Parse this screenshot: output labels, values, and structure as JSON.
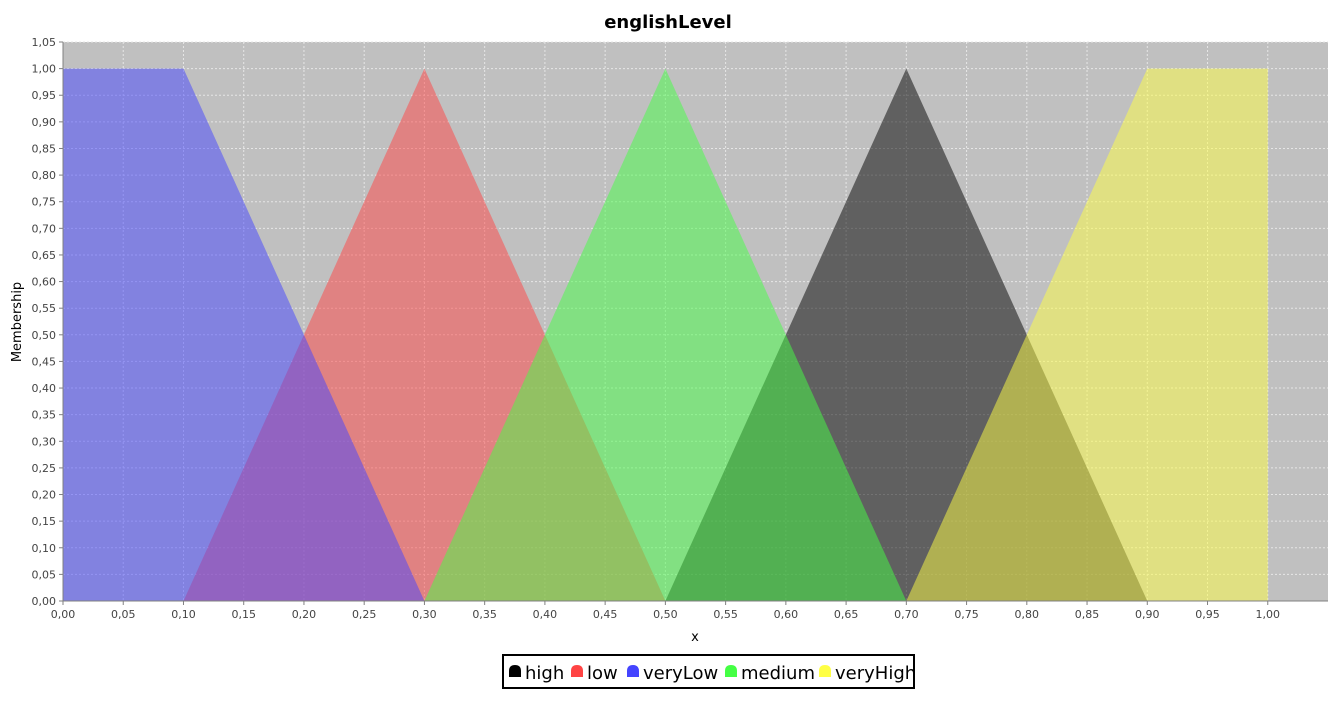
{
  "chart_data": {
    "type": "area",
    "title": "englishLevel",
    "xlabel": "x",
    "ylabel": "Membership",
    "xlim": [
      0,
      1.05
    ],
    "ylim": [
      0,
      1.05
    ],
    "grid": true,
    "legend_position": "bottom",
    "x_ticks": [
      "0,00",
      "0,05",
      "0,10",
      "0,15",
      "0,20",
      "0,25",
      "0,30",
      "0,35",
      "0,40",
      "0,45",
      "0,50",
      "0,55",
      "0,60",
      "0,65",
      "0,70",
      "0,75",
      "0,80",
      "0,85",
      "0,90",
      "0,95",
      "1,00"
    ],
    "y_ticks": [
      "0,00",
      "0,05",
      "0,10",
      "0,15",
      "0,20",
      "0,25",
      "0,30",
      "0,35",
      "0,40",
      "0,45",
      "0,50",
      "0,55",
      "0,60",
      "0,65",
      "0,70",
      "0,75",
      "0,80",
      "0,85",
      "0,90",
      "0,95",
      "1,00",
      "1,05"
    ],
    "series": [
      {
        "name": "high",
        "color": "#000000",
        "points": [
          [
            0.5,
            0
          ],
          [
            0.7,
            1
          ],
          [
            0.9,
            0
          ]
        ]
      },
      {
        "name": "low",
        "color": "#ff4444",
        "points": [
          [
            0.1,
            0
          ],
          [
            0.3,
            1
          ],
          [
            0.5,
            0
          ]
        ]
      },
      {
        "name": "veryLow",
        "color": "#4444ff",
        "points": [
          [
            0,
            0
          ],
          [
            0,
            1
          ],
          [
            0.1,
            1
          ],
          [
            0.3,
            0
          ]
        ]
      },
      {
        "name": "medium",
        "color": "#44ff44",
        "points": [
          [
            0.3,
            0
          ],
          [
            0.5,
            1
          ],
          [
            0.7,
            0
          ]
        ]
      },
      {
        "name": "veryHigh",
        "color": "#ffff44",
        "points": [
          [
            0.7,
            0
          ],
          [
            0.9,
            1
          ],
          [
            1.0,
            1
          ],
          [
            1.0,
            0
          ]
        ]
      }
    ]
  }
}
